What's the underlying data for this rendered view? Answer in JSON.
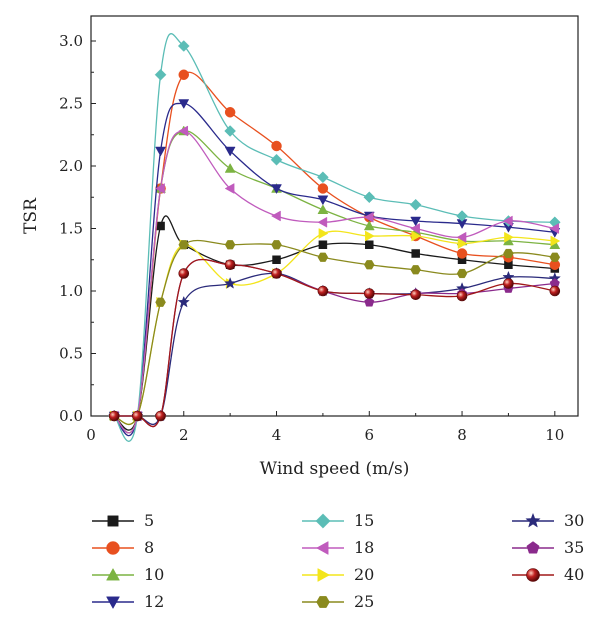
{
  "chart_data": {
    "type": "line",
    "xlabel": "Wind speed (m/s)",
    "ylabel": "TSR",
    "xlim": [
      0,
      10.5
    ],
    "ylim": [
      0,
      3.2
    ],
    "xticks": [
      0,
      2,
      4,
      6,
      8,
      10
    ],
    "yticks": [
      0.0,
      0.5,
      1.0,
      1.5,
      2.0,
      2.5,
      3.0
    ],
    "xtick_labels": [
      "0",
      "2",
      "4",
      "6",
      "8",
      "10"
    ],
    "ytick_labels": [
      "0.0",
      "0.5",
      "1.0",
      "1.5",
      "2.0",
      "2.5",
      "3.0"
    ],
    "grid": false,
    "legend_position": "bottom",
    "x": [
      0.5,
      1,
      1.5,
      2,
      3,
      4,
      5,
      6,
      7,
      8,
      9,
      10
    ],
    "series": [
      {
        "name": "5",
        "color": "#1a1a1a",
        "marker": "square",
        "values": [
          0,
          0,
          1.52,
          1.37,
          1.21,
          1.25,
          1.37,
          1.37,
          1.3,
          1.25,
          1.21,
          1.18
        ]
      },
      {
        "name": "8",
        "color": "#e8501f",
        "marker": "circle",
        "values": [
          0,
          0,
          1.82,
          2.73,
          2.43,
          2.16,
          1.82,
          1.59,
          1.44,
          1.3,
          1.27,
          1.21
        ]
      },
      {
        "name": "10",
        "color": "#7cb342",
        "marker": "triangle-up",
        "values": [
          0,
          0,
          1.82,
          2.28,
          1.98,
          1.82,
          1.65,
          1.52,
          1.47,
          1.4,
          1.4,
          1.37
        ]
      },
      {
        "name": "12",
        "color": "#2a2a8c",
        "marker": "triangle-down",
        "values": [
          0,
          0,
          2.12,
          2.5,
          2.12,
          1.82,
          1.73,
          1.6,
          1.56,
          1.54,
          1.51,
          1.47
        ]
      },
      {
        "name": "15",
        "color": "#5bbdb6",
        "marker": "diamond",
        "values": [
          0,
          0,
          2.73,
          2.96,
          2.28,
          2.05,
          1.91,
          1.75,
          1.69,
          1.6,
          1.56,
          1.55
        ]
      },
      {
        "name": "18",
        "color": "#c05bbd",
        "marker": "triangle-left",
        "values": [
          0,
          0,
          1.82,
          2.28,
          1.82,
          1.6,
          1.55,
          1.59,
          1.5,
          1.43,
          1.56,
          1.5
        ]
      },
      {
        "name": "20",
        "color": "#f3e51c",
        "marker": "triangle-right",
        "values": [
          0,
          0,
          0.91,
          1.37,
          1.06,
          1.14,
          1.46,
          1.44,
          1.44,
          1.38,
          1.43,
          1.4
        ]
      },
      {
        "name": "25",
        "color": "#8a8a1e",
        "marker": "hexagon",
        "values": [
          0,
          0,
          0.91,
          1.37,
          1.37,
          1.37,
          1.27,
          1.21,
          1.17,
          1.14,
          1.3,
          1.27
        ]
      },
      {
        "name": "30",
        "color": "#2a2a7a",
        "marker": "star",
        "values": [
          0,
          0,
          0,
          0.91,
          1.06,
          1.14,
          1.0,
          0.98,
          0.98,
          1.02,
          1.11,
          1.1
        ]
      },
      {
        "name": "35",
        "color": "#8a2a8c",
        "marker": "pentagon",
        "values": [
          0,
          0,
          0,
          1.14,
          1.21,
          1.14,
          1.0,
          0.91,
          0.98,
          0.98,
          1.02,
          1.06
        ]
      },
      {
        "name": "40",
        "color": "#a01818",
        "marker": "sphere",
        "values": [
          0,
          0,
          0,
          1.14,
          1.21,
          1.14,
          1.0,
          0.98,
          0.97,
          0.96,
          1.06,
          1.0
        ]
      }
    ]
  }
}
